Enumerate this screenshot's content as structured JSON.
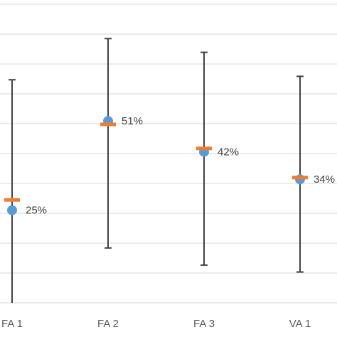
{
  "chart_data": {
    "type": "scatter",
    "categories": [
      "FA 1",
      "FA 2",
      "FA 3",
      "VA 1"
    ],
    "series": [
      {
        "values": [
          25,
          51,
          42,
          34
        ]
      }
    ],
    "error_bars": {
      "low": [
        -2,
        14,
        9,
        7
      ],
      "high": [
        63,
        75,
        71,
        64
      ]
    },
    "markers": [
      28,
      50,
      43,
      34.5
    ],
    "data_labels": [
      "25%",
      "51%",
      "42%",
      "34%"
    ],
    "ylim": [
      -2,
      85
    ],
    "grid": true,
    "colors": {
      "point": "#5B9BD5",
      "marker": "#ED7D31",
      "error_bar": "#404040",
      "grid": "#d9d9d9",
      "axis_text": "#595959"
    }
  }
}
